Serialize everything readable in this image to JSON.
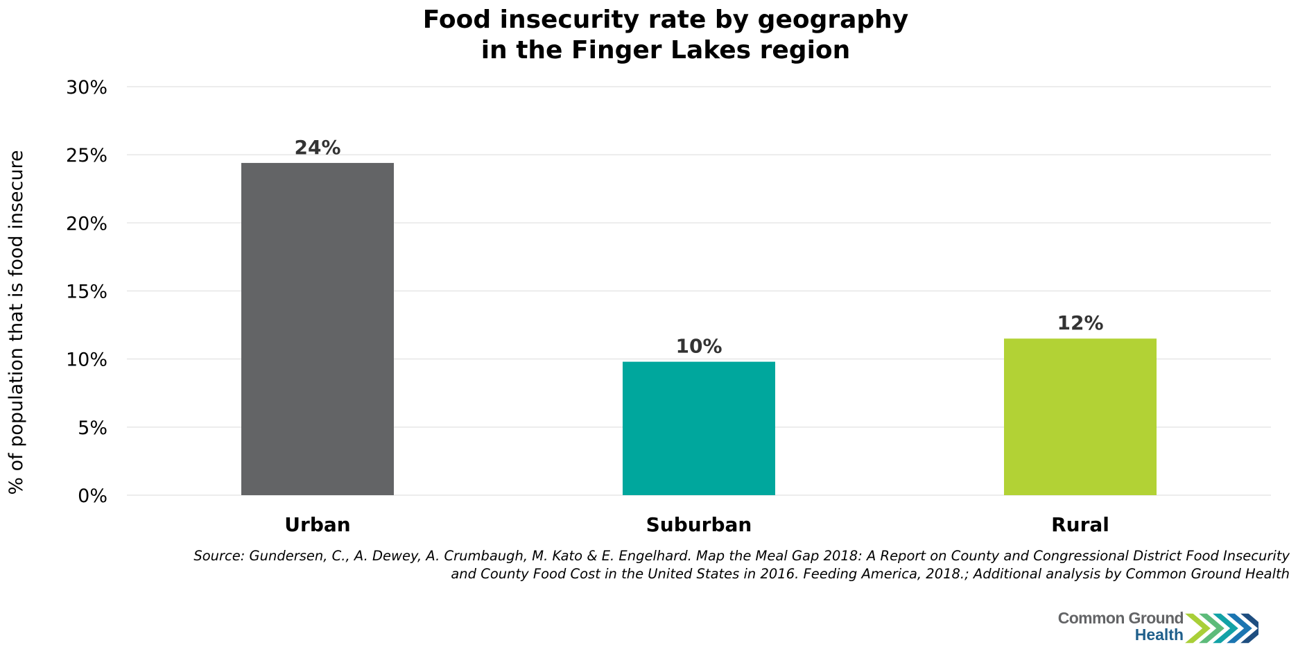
{
  "chart_data": {
    "type": "bar",
    "title": [
      "Food insecurity rate by geography",
      "in the Finger Lakes region"
    ],
    "xlabel": "",
    "ylabel": "% of population that is food insecure",
    "categories": [
      "Urban",
      "Suburban",
      "Rural"
    ],
    "values": [
      24.4,
      9.8,
      11.5
    ],
    "data_labels": [
      "24%",
      "10%",
      "12%"
    ],
    "colors": [
      "#636466",
      "#00A79D",
      "#B2D235"
    ],
    "ylim": [
      0,
      30
    ],
    "yticks": [
      0,
      5,
      10,
      15,
      20,
      25,
      30
    ],
    "ytick_labels": [
      "0%",
      "5%",
      "10%",
      "15%",
      "20%",
      "25%",
      "30%"
    ],
    "grid": true,
    "legend": "none"
  },
  "source": {
    "line1": "Source: Gundersen, C., A. Dewey, A. Crumbaugh, M. Kato & E. Engelhard. Map the Meal Gap 2018: A Report on County and Congressional District Food Insecurity",
    "line2": "and County Food Cost in the United States in 2016. Feeding America, 2018.; Additional analysis by Common Ground Health"
  },
  "logo": {
    "line1": "Common Ground",
    "line2": "Health",
    "line1_color": "#636466",
    "line2_color": "#1F5F8B",
    "chevron_colors": [
      "#A9CF38",
      "#5DBB7A",
      "#12A2A6",
      "#1B75B1",
      "#1E4E80"
    ]
  }
}
